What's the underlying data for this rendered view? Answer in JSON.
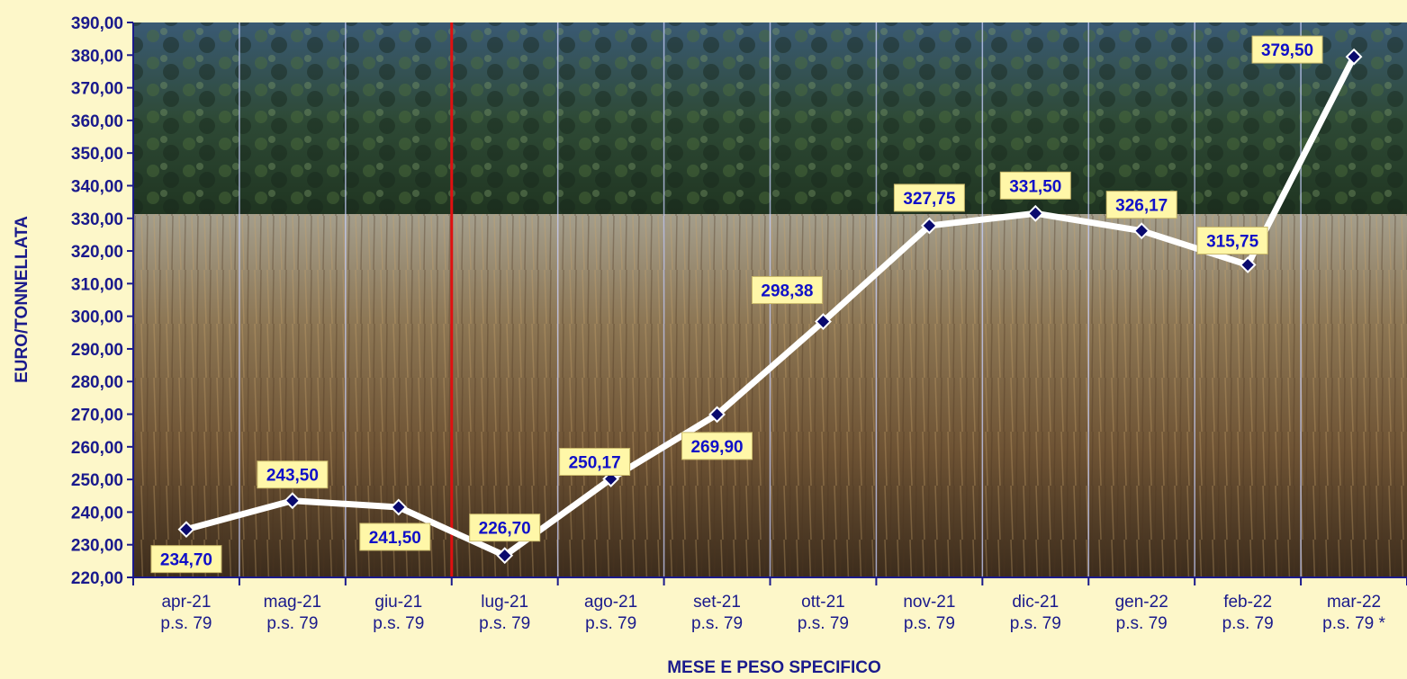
{
  "chart_data": {
    "type": "line",
    "title": "",
    "xlabel": "MESE E PESO SPECIFICO",
    "ylabel": "EURO/TONNELLATA",
    "ylim": [
      220,
      390
    ],
    "ytick_step": 10,
    "ytick_labels": [
      "220,00",
      "230,00",
      "240,00",
      "250,00",
      "260,00",
      "270,00",
      "280,00",
      "290,00",
      "300,00",
      "310,00",
      "320,00",
      "330,00",
      "340,00",
      "350,00",
      "360,00",
      "370,00",
      "380,00",
      "390,00"
    ],
    "categories": [
      {
        "month": "apr-21",
        "spec": "p.s. 79"
      },
      {
        "month": "mag-21",
        "spec": "p.s. 79"
      },
      {
        "month": "giu-21",
        "spec": "p.s. 79"
      },
      {
        "month": "lug-21",
        "spec": "p.s. 79"
      },
      {
        "month": "ago-21",
        "spec": "p.s. 79"
      },
      {
        "month": "set-21",
        "spec": "p.s. 79"
      },
      {
        "month": "ott-21",
        "spec": "p.s. 79"
      },
      {
        "month": "nov-21",
        "spec": "p.s. 79"
      },
      {
        "month": "dic-21",
        "spec": "p.s. 79"
      },
      {
        "month": "gen-22",
        "spec": "p.s. 79"
      },
      {
        "month": "feb-22",
        "spec": "p.s. 79"
      },
      {
        "month": "mar-22",
        "spec": "p.s. 79 *"
      }
    ],
    "values": [
      234.7,
      243.5,
      241.5,
      226.7,
      250.17,
      269.9,
      298.38,
      327.75,
      331.5,
      326.17,
      315.75,
      379.5
    ],
    "value_labels": [
      "234,70",
      "243,50",
      "241,50",
      "226,70",
      "250,17",
      "269,90",
      "298,38",
      "327,75",
      "331,50",
      "326,17",
      "315,75",
      "379,50"
    ],
    "marker_line_after_index": 2,
    "grid": "vertical",
    "legend": "none",
    "background": "wheat field photograph",
    "colors": {
      "line": "#ffffff",
      "marker": "#0a0a6e",
      "label_text": "#1010c8",
      "label_box": "#fff7a8",
      "axis_text": "#1a1a8c",
      "divider": "#e01010",
      "page_bg": "#fdf7c9"
    }
  }
}
